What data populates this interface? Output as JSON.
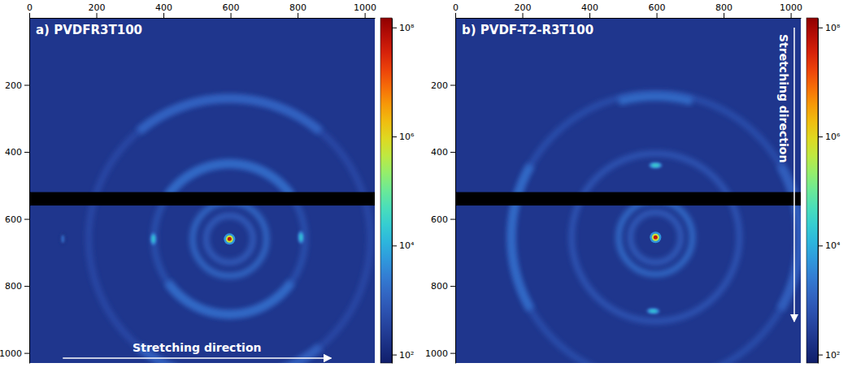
{
  "chart_data": [
    {
      "type": "heatmap",
      "title": "a) PVDFR3T100",
      "xlim": [
        0,
        1030
      ],
      "ylim": [
        0,
        1030
      ],
      "xticks": [
        0,
        200,
        400,
        600,
        800,
        1000
      ],
      "yticks": [
        200,
        400,
        600,
        800,
        1000
      ],
      "background": 200,
      "center": [
        597,
        660
      ],
      "center_intensity": 50000000,
      "beamstop": [
        520,
        560
      ],
      "rings": [
        {
          "radius": 70,
          "intensity": 900
        },
        {
          "radius": 110,
          "intensity": 1400
        },
        {
          "radius": 225,
          "intensity": 600
        },
        {
          "radius": 420,
          "intensity": 450
        }
      ],
      "arcs": [
        {
          "radius": 225,
          "from": -55,
          "to": 55,
          "intensity": 1500
        },
        {
          "radius": 225,
          "from": 125,
          "to": 235,
          "intensity": 1500
        },
        {
          "radius": 420,
          "from": -40,
          "to": 40,
          "intensity": 1200
        },
        {
          "radius": 420,
          "from": 140,
          "to": 220,
          "intensity": 1000
        }
      ],
      "spots": [
        {
          "x": 370,
          "y": 660,
          "intensity": 20000
        },
        {
          "x": 810,
          "y": 655,
          "intensity": 20000
        },
        {
          "x": 100,
          "y": 660,
          "intensity": 1500
        }
      ],
      "colorbar": {
        "range": [
          70,
          150000000
        ],
        "log": true,
        "ticks": [
          {
            "value": 100,
            "label": "10²"
          },
          {
            "value": 10000,
            "label": "10⁴"
          },
          {
            "value": 1000000,
            "label": "10⁶"
          },
          {
            "value": 100000000,
            "label": "10⁸"
          }
        ]
      },
      "annotation": {
        "text": "Stretching direction",
        "orientation": "horizontal"
      }
    },
    {
      "type": "heatmap",
      "title": "b) PVDF-T2-R3T100",
      "xlim": [
        0,
        1030
      ],
      "ylim": [
        0,
        1030
      ],
      "xticks": [
        0,
        200,
        400,
        600,
        800,
        1000
      ],
      "yticks": [
        200,
        400,
        600,
        800,
        1000
      ],
      "background": 200,
      "center": [
        597,
        655
      ],
      "center_intensity": 50000000,
      "beamstop": [
        520,
        560
      ],
      "rings": [
        {
          "radius": 75,
          "intensity": 900
        },
        {
          "radius": 110,
          "intensity": 1500
        },
        {
          "radius": 250,
          "intensity": 700
        },
        {
          "radius": 430,
          "intensity": 550
        }
      ],
      "arcs": [
        {
          "radius": 430,
          "from": 240,
          "to": 300,
          "intensity": 1500
        },
        {
          "radius": 430,
          "from": 60,
          "to": 120,
          "intensity": 1000
        },
        {
          "radius": 420,
          "from": -15,
          "to": 15,
          "intensity": 1500
        }
      ],
      "spots": [
        {
          "x": 597,
          "y": 440,
          "intensity": 30000
        },
        {
          "x": 590,
          "y": 875,
          "intensity": 20000
        }
      ],
      "colorbar": {
        "range": [
          70,
          150000000
        ],
        "log": true,
        "ticks": [
          {
            "value": 100,
            "label": "10²"
          },
          {
            "value": 10000,
            "label": "10⁴"
          },
          {
            "value": 1000000,
            "label": "10⁶"
          },
          {
            "value": 100000000,
            "label": "10⁸"
          }
        ]
      },
      "annotation": {
        "text": "Stretching direction",
        "orientation": "vertical"
      }
    }
  ]
}
